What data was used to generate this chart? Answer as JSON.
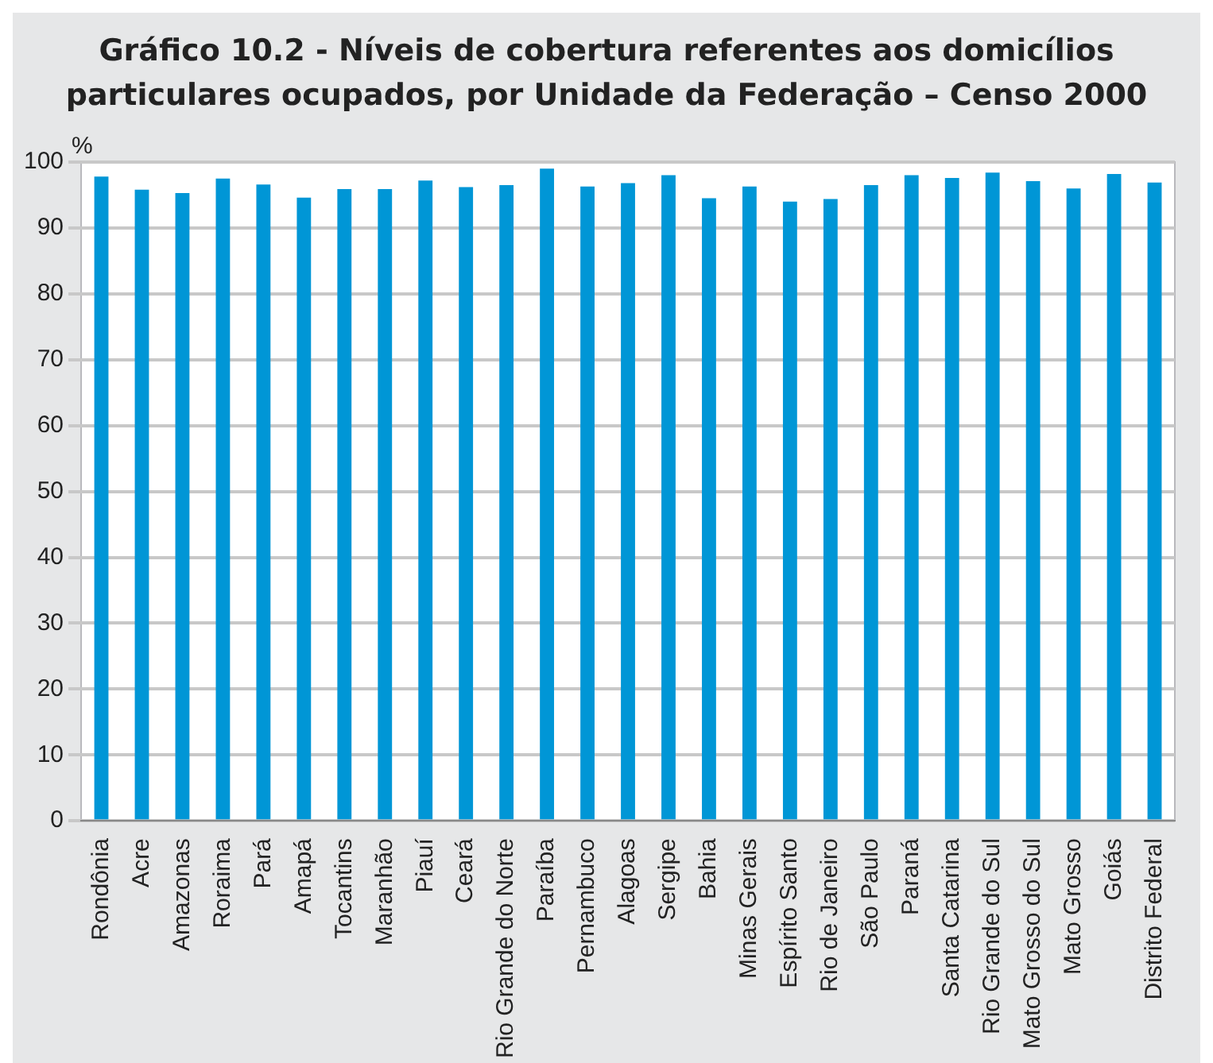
{
  "chart_data": {
    "type": "bar",
    "title": "Gráfico 10.2 - Níveis de cobertura referentes aos domicílios particulares ocupados, por Unidade da Federação – Censo 2000",
    "ylabel": "%",
    "categories": [
      "Rondônia",
      "Acre",
      "Amazonas",
      "Roraima",
      "Pará",
      "Amapá",
      "Tocantins",
      "Maranhão",
      "Piauí",
      "Ceará",
      "Rio Grande do Norte",
      "Paraíba",
      "Pernambuco",
      "Alagoas",
      "Sergipe",
      "Bahia",
      "Minas Gerais",
      "Espírito Santo",
      "Rio de Janeiro",
      "São Paulo",
      "Paraná",
      "Santa Catarina",
      "Rio Grande do Sul",
      "Mato Grosso do Sul",
      "Mato Grosso",
      "Goiás",
      "Distrito Federal"
    ],
    "values": [
      97.8,
      95.8,
      95.3,
      97.5,
      96.6,
      94.6,
      95.9,
      95.9,
      97.2,
      96.2,
      96.5,
      99.0,
      96.3,
      96.8,
      98.0,
      94.5,
      96.3,
      94.0,
      94.4,
      96.5,
      98.0,
      97.6,
      98.4,
      97.1,
      96.0,
      98.2,
      96.9
    ],
    "color": "#0096d6",
    "ylim": [
      0,
      100
    ],
    "yticks": [
      0,
      10,
      20,
      30,
      40,
      50,
      60,
      70,
      80,
      90,
      100
    ],
    "grid": "y"
  }
}
